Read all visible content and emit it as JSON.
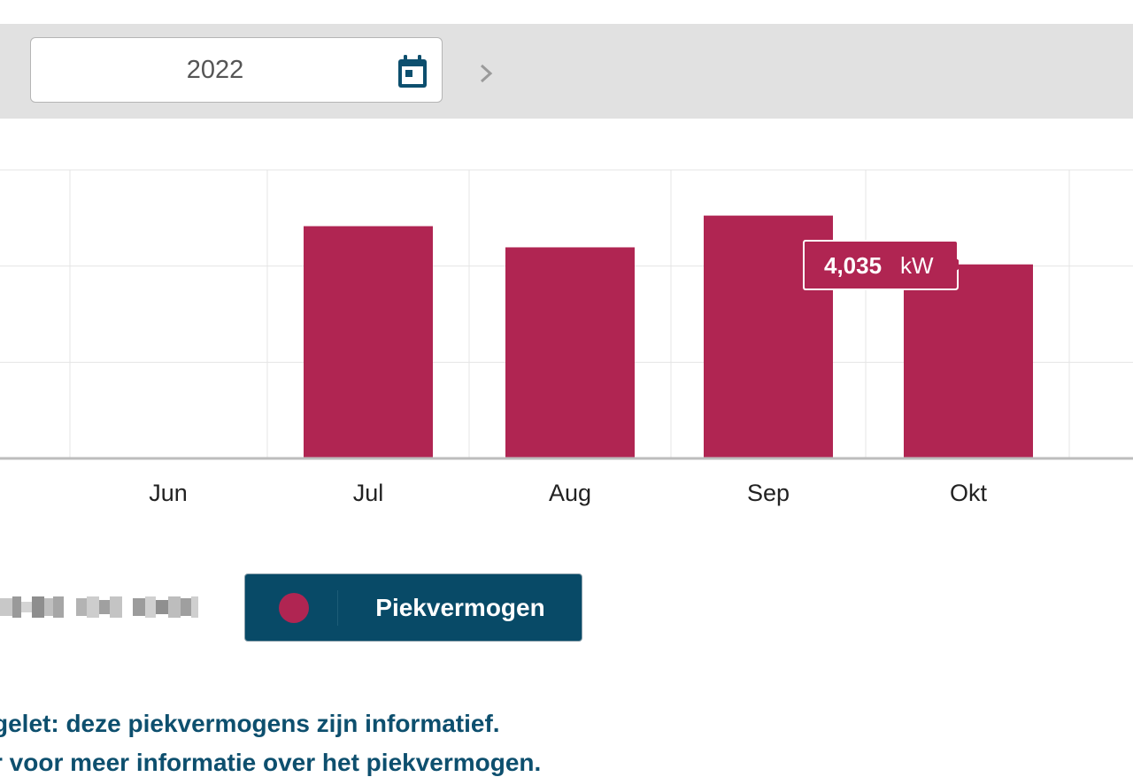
{
  "header": {
    "year_value": "2022",
    "calendar_icon": "calendar-icon",
    "next_icon": "chevron-right-icon"
  },
  "chart_data": {
    "type": "bar",
    "categories": [
      "Jun",
      "Jul",
      "Aug",
      "Sep",
      "Okt"
    ],
    "series": [
      {
        "name": "Piekvermogen",
        "values": [
          null,
          4.83,
          4.39,
          5.05,
          4.035
        ]
      }
    ],
    "ylim": [
      0,
      6
    ],
    "grid": true,
    "bar_color": "#b02552",
    "tooltip": {
      "value": "4,035",
      "unit": "kW",
      "category": "Okt"
    }
  },
  "legend": {
    "label": "Piekvermogen",
    "color": "#b02552",
    "button_color": "#084a67"
  },
  "notes": {
    "line1": "gelet: deze piekvermogens zijn informatief.",
    "line2": "r voor meer informatie over het piekvermogen."
  }
}
